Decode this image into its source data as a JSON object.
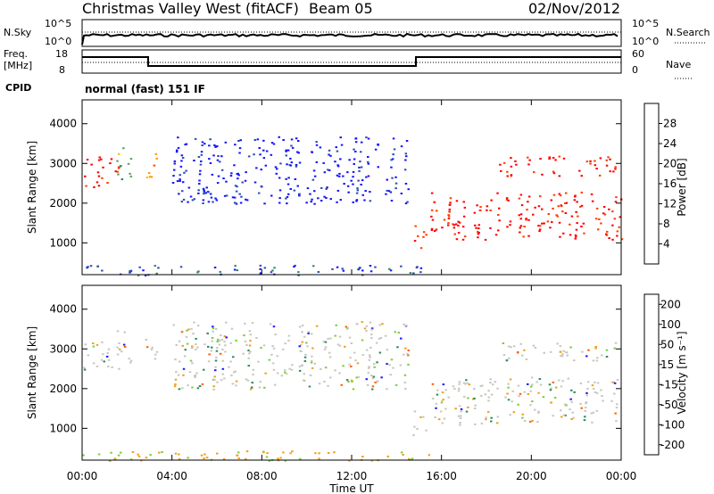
{
  "header": {
    "title": "Christmas Valley West (fitACF)",
    "beam": "Beam 05",
    "date": "02/Nov/2012"
  },
  "panels": {
    "nsky": {
      "label": "N.Sky",
      "ytop": "10^5",
      "ybot": "10^0",
      "right_label": "N.Search",
      "rtop": "10^5",
      "rbot": "10^0"
    },
    "freq": {
      "label1": "Freq.",
      "label2": "[MHz]",
      "ytop": "18",
      "ybot": "8",
      "right_label": "Nave",
      "rtop": "60",
      "rbot": "0"
    },
    "cpid": {
      "label": "CPID",
      "mode": "normal (fast) 151 IF"
    }
  },
  "chart_data": [
    {
      "type": "heatmap",
      "name": "power",
      "ylabel": "Slant Range [km]",
      "yticks": [
        "1000",
        "2000",
        "3000",
        "4000"
      ],
      "ylim": [
        200,
        4600
      ],
      "colorbar_label": "Power [dB]",
      "colorbar_ticks": [
        "4",
        "8",
        "12",
        "16",
        "20",
        "24",
        "28"
      ],
      "colors": [
        "#1414ff",
        "#2b4fb0",
        "#2e8b57",
        "#5aa05a",
        "#f0c020",
        "#ff9a00",
        "#ff4000",
        "#ff0000"
      ],
      "regions": [
        {
          "t0": 0.0,
          "t1": 1.6,
          "r0": 2400,
          "r1": 3200,
          "level": 7
        },
        {
          "t0": 1.5,
          "t1": 2.2,
          "r0": 2600,
          "r1": 3500,
          "level": 3
        },
        {
          "t0": 2.8,
          "t1": 3.3,
          "r0": 2500,
          "r1": 3300,
          "level": 5
        },
        {
          "t0": 14.7,
          "t1": 15.3,
          "r0": 800,
          "r1": 1500,
          "level": 6
        },
        {
          "t0": 15.5,
          "t1": 24.0,
          "r0": 1100,
          "r1": 2300,
          "level": 7
        },
        {
          "t0": 18.5,
          "t1": 23.8,
          "r0": 2700,
          "r1": 3200,
          "level": 7
        },
        {
          "t0": 4.0,
          "t1": 14.5,
          "r0": 2000,
          "r1": 3700,
          "level": 0
        },
        {
          "t0": 0.0,
          "t1": 15.5,
          "r0": 200,
          "r1": 450,
          "level": 1
        }
      ]
    },
    {
      "type": "heatmap",
      "name": "velocity",
      "ylabel": "Slant Range [km]",
      "yticks": [
        "1000",
        "2000",
        "3000",
        "4000"
      ],
      "ylim": [
        200,
        4600
      ],
      "colorbar_label": "Velocity [m s⁻¹]",
      "colorbar_ticks": [
        "200",
        "100",
        "50",
        "15",
        "-15",
        "-50",
        "-100",
        "-200"
      ],
      "colors": [
        "#1a1aff",
        "#2a5ab0",
        "#2e8b57",
        "#7ccf3a",
        "#c8c8c0",
        "#f0a020",
        "#ff6000",
        "#ff0000"
      ],
      "xticks": [
        "00:00",
        "04:00",
        "08:00",
        "12:00",
        "16:00",
        "20:00",
        "00:00"
      ],
      "xlabel": "Time UT"
    }
  ]
}
